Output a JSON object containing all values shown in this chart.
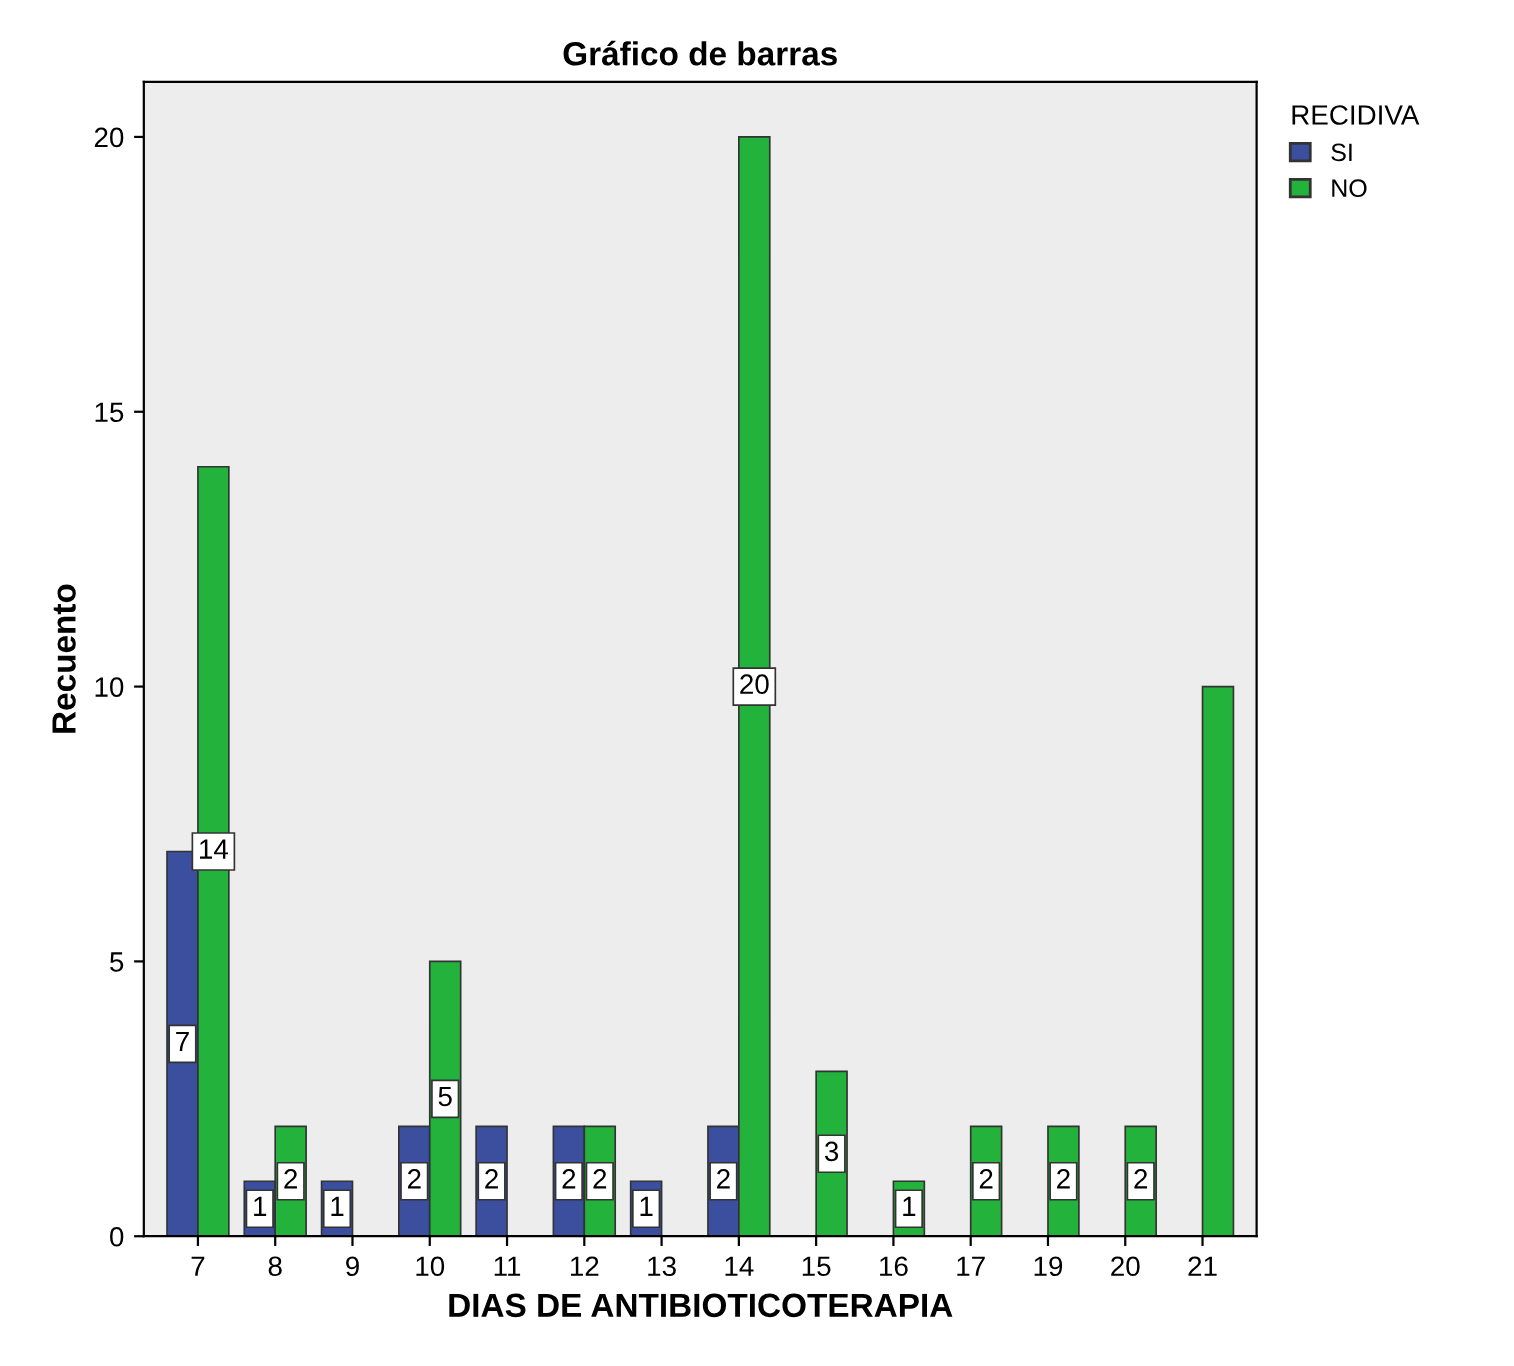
{
  "chart_data": {
    "type": "bar",
    "title": "Gráfico de barras",
    "xlabel": "DIAS DE ANTIBIOTICOTERAPIA",
    "ylabel": "Recuento",
    "legend_title": "RECIDIVA",
    "categories": [
      "7",
      "8",
      "9",
      "10",
      "11",
      "12",
      "13",
      "14",
      "15",
      "16",
      "17",
      "19",
      "20",
      "21"
    ],
    "series": [
      {
        "name": "SI",
        "color": "#3b4f9e",
        "values": [
          7,
          1,
          1,
          2,
          2,
          2,
          1,
          2,
          null,
          null,
          null,
          null,
          null,
          null
        ],
        "value_labels": [
          "7",
          "1",
          "1",
          "2",
          "2",
          "2",
          "1",
          "2",
          null,
          null,
          null,
          null,
          null,
          null
        ]
      },
      {
        "name": "NO",
        "color": "#23b23c",
        "values": [
          14,
          2,
          null,
          5,
          null,
          2,
          null,
          20,
          3,
          1,
          2,
          2,
          2,
          10
        ],
        "value_labels": [
          "14",
          "2",
          null,
          "5",
          null,
          "2",
          null,
          "20",
          "3",
          "1",
          "2",
          "2",
          "2",
          null
        ]
      }
    ],
    "ylim": [
      0,
      21
    ],
    "yticks": [
      0,
      5,
      10,
      15,
      20
    ],
    "grid": false,
    "legend": "top right"
  }
}
